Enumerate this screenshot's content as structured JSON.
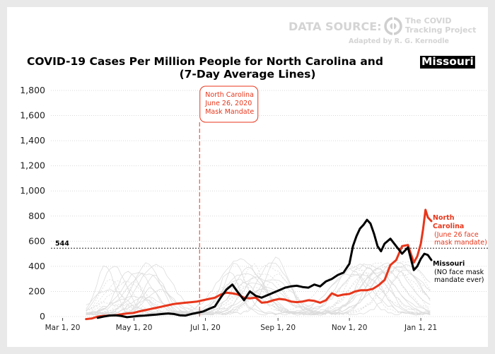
{
  "source": {
    "label": "DATA SOURCE:",
    "logo_line1": "The COVID",
    "logo_line2": "Tracking Project",
    "adapted_by": "Adapted by R. G. Kernodle"
  },
  "colors": {
    "north_carolina": "#e8361b",
    "missouri": "#000000",
    "background_states": "#dcdcdc",
    "grid": "#d9d9d9"
  },
  "chart_data": {
    "type": "line",
    "title_line1_prefix": "COVID-19 Cases Per Million People for North Carolina and ",
    "title_highlight": "Missouri",
    "title_line2": "(7-Day Average Lines)",
    "xlabel": "",
    "ylabel": "",
    "ylim": [
      0,
      1800
    ],
    "xlim_days": [
      0,
      325
    ],
    "x_origin_date": "2020-02-20",
    "yticks": [
      0,
      200,
      400,
      600,
      800,
      1000,
      1200,
      1400,
      1600,
      1800
    ],
    "ytick_labels": [
      "0",
      "200",
      "400",
      "600",
      "800",
      "1,000",
      "1,200",
      "1,400",
      "1,600",
      "1,800"
    ],
    "xticks": [
      {
        "day": 10,
        "label": "Mar 1, 20"
      },
      {
        "day": 71,
        "label": "May 1, 20"
      },
      {
        "day": 132,
        "label": "Jul 1, 20"
      },
      {
        "day": 194,
        "label": "Sep 1, 20"
      },
      {
        "day": 255,
        "label": "Nov 1, 20"
      },
      {
        "day": 316,
        "label": "Jan 1, 21"
      }
    ],
    "reference_line": {
      "value": 544,
      "label": "544"
    },
    "mask_mandate": {
      "day": 127,
      "lines": [
        "North Carolina",
        "June 26, 2020",
        "Mask Mandate"
      ]
    },
    "grid": true,
    "series": [
      {
        "name": "North Carolina",
        "label_lines": [
          "North",
          "Carolina"
        ],
        "note_lines": [
          "(June 26 face",
          "mask mandate)"
        ],
        "x": [
          30,
          35,
          40,
          45,
          50,
          55,
          60,
          65,
          70,
          75,
          80,
          85,
          90,
          95,
          100,
          105,
          110,
          115,
          120,
          125,
          130,
          135,
          140,
          145,
          150,
          155,
          160,
          165,
          170,
          175,
          180,
          185,
          190,
          195,
          200,
          205,
          210,
          215,
          220,
          225,
          230,
          235,
          240,
          245,
          250,
          255,
          260,
          265,
          270,
          275,
          280,
          285,
          290,
          295,
          300,
          305,
          310,
          313,
          316,
          318,
          320,
          322,
          325
        ],
        "values": [
          -20,
          -15,
          0,
          5,
          8,
          10,
          18,
          25,
          28,
          40,
          50,
          60,
          70,
          80,
          90,
          100,
          105,
          110,
          115,
          120,
          130,
          140,
          150,
          175,
          190,
          185,
          175,
          150,
          145,
          150,
          110,
          115,
          130,
          140,
          135,
          120,
          115,
          120,
          130,
          125,
          110,
          130,
          185,
          165,
          175,
          180,
          200,
          210,
          210,
          220,
          250,
          290,
          410,
          450,
          560,
          570,
          430,
          480,
          580,
          700,
          850,
          790,
          760
        ]
      },
      {
        "name": "Missouri",
        "label_lines": [
          "Missouri"
        ],
        "note_lines": [
          "(NO face mask",
          "mandate ever)"
        ],
        "x": [
          40,
          45,
          50,
          55,
          60,
          65,
          70,
          75,
          80,
          85,
          90,
          95,
          100,
          105,
          110,
          115,
          120,
          125,
          130,
          135,
          140,
          145,
          150,
          155,
          160,
          165,
          170,
          175,
          180,
          185,
          190,
          195,
          200,
          205,
          210,
          215,
          220,
          225,
          230,
          235,
          240,
          245,
          250,
          255,
          258,
          261,
          264,
          267,
          270,
          273,
          276,
          279,
          282,
          285,
          290,
          295,
          300,
          305,
          310,
          313,
          316,
          319,
          322,
          325
        ],
        "values": [
          -10,
          0,
          8,
          10,
          5,
          -5,
          0,
          5,
          8,
          12,
          15,
          20,
          25,
          20,
          10,
          8,
          20,
          30,
          40,
          60,
          80,
          150,
          215,
          255,
          190,
          130,
          200,
          165,
          150,
          170,
          190,
          210,
          230,
          240,
          245,
          235,
          230,
          255,
          240,
          280,
          300,
          330,
          350,
          420,
          560,
          640,
          700,
          730,
          770,
          740,
          660,
          560,
          520,
          580,
          620,
          560,
          500,
          550,
          370,
          400,
          460,
          500,
          490,
          450
        ]
      }
    ]
  }
}
